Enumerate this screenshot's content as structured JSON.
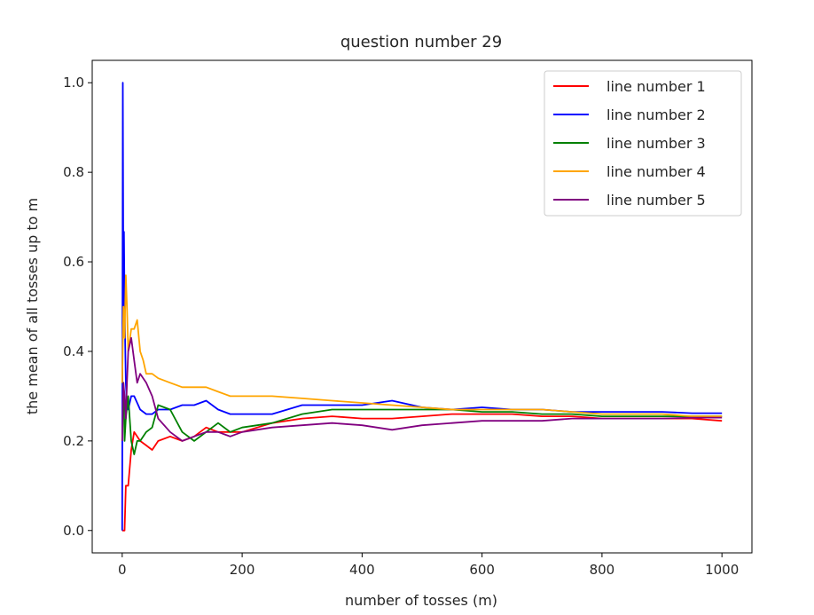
{
  "chart_data": {
    "type": "line",
    "title": "question number 29",
    "xlabel": "number of tosses (m)",
    "ylabel": "the mean of all tosses up to m",
    "xlim": [
      -50,
      1050
    ],
    "ylim": [
      -0.05,
      1.05
    ],
    "xticks": [
      0,
      200,
      400,
      600,
      800,
      1000
    ],
    "yticks": [
      0.0,
      0.2,
      0.4,
      0.6,
      0.8,
      1.0
    ],
    "ytick_labels": [
      "0.0",
      "0.2",
      "0.4",
      "0.6",
      "0.8",
      "1.0"
    ],
    "grid": false,
    "legend_position": "top-right",
    "series": [
      {
        "name": "line number 1",
        "color": "#ff0000",
        "x": [
          0,
          2,
          4,
          6,
          10,
          15,
          20,
          30,
          40,
          50,
          60,
          80,
          100,
          120,
          140,
          160,
          180,
          200,
          250,
          300,
          350,
          400,
          450,
          500,
          550,
          600,
          650,
          700,
          750,
          800,
          850,
          900,
          950,
          1000
        ],
        "y": [
          0.0,
          0.0,
          0.0,
          0.1,
          0.1,
          0.18,
          0.22,
          0.2,
          0.19,
          0.18,
          0.2,
          0.21,
          0.2,
          0.21,
          0.23,
          0.22,
          0.22,
          0.22,
          0.24,
          0.25,
          0.255,
          0.25,
          0.25,
          0.255,
          0.26,
          0.26,
          0.26,
          0.255,
          0.255,
          0.25,
          0.25,
          0.25,
          0.25,
          0.245
        ]
      },
      {
        "name": "line number 2",
        "color": "#0000ff",
        "x": [
          0,
          1,
          2,
          3,
          4,
          6,
          8,
          10,
          15,
          20,
          30,
          40,
          50,
          60,
          80,
          100,
          120,
          140,
          160,
          180,
          200,
          250,
          300,
          350,
          400,
          450,
          500,
          550,
          600,
          650,
          700,
          750,
          800,
          850,
          900,
          950,
          1000
        ],
        "y": [
          0.0,
          1.0,
          0.5,
          0.667,
          0.5,
          0.33,
          0.28,
          0.27,
          0.3,
          0.3,
          0.27,
          0.26,
          0.26,
          0.27,
          0.27,
          0.28,
          0.28,
          0.29,
          0.27,
          0.26,
          0.26,
          0.26,
          0.28,
          0.28,
          0.28,
          0.29,
          0.275,
          0.27,
          0.275,
          0.27,
          0.27,
          0.265,
          0.265,
          0.265,
          0.265,
          0.262,
          0.262
        ]
      },
      {
        "name": "line number 3",
        "color": "#008000",
        "x": [
          0,
          2,
          4,
          6,
          10,
          15,
          20,
          25,
          30,
          40,
          50,
          60,
          80,
          100,
          120,
          140,
          160,
          180,
          200,
          250,
          300,
          350,
          400,
          450,
          500,
          550,
          600,
          650,
          700,
          750,
          800,
          850,
          900,
          950,
          1000
        ],
        "y": [
          0.33,
          0.33,
          0.2,
          0.25,
          0.3,
          0.2,
          0.17,
          0.2,
          0.2,
          0.22,
          0.23,
          0.28,
          0.27,
          0.22,
          0.2,
          0.22,
          0.24,
          0.22,
          0.23,
          0.24,
          0.26,
          0.27,
          0.27,
          0.27,
          0.27,
          0.27,
          0.265,
          0.265,
          0.26,
          0.26,
          0.255,
          0.255,
          0.255,
          0.255,
          0.255
        ]
      },
      {
        "name": "line number 4",
        "color": "#ffa500",
        "x": [
          0,
          2,
          4,
          6,
          8,
          10,
          15,
          20,
          25,
          30,
          35,
          40,
          50,
          60,
          80,
          100,
          120,
          140,
          160,
          180,
          200,
          250,
          300,
          350,
          400,
          450,
          500,
          550,
          600,
          650,
          700,
          750,
          800,
          850,
          900,
          950,
          1000
        ],
        "y": [
          0.33,
          0.5,
          0.43,
          0.57,
          0.5,
          0.4,
          0.45,
          0.45,
          0.47,
          0.4,
          0.38,
          0.35,
          0.35,
          0.34,
          0.33,
          0.32,
          0.32,
          0.32,
          0.31,
          0.3,
          0.3,
          0.3,
          0.295,
          0.29,
          0.285,
          0.28,
          0.275,
          0.27,
          0.27,
          0.27,
          0.27,
          0.265,
          0.26,
          0.26,
          0.26,
          0.255,
          0.255
        ]
      },
      {
        "name": "line number 5",
        "color": "#800080",
        "x": [
          0,
          2,
          4,
          6,
          8,
          10,
          15,
          20,
          25,
          30,
          40,
          50,
          60,
          80,
          100,
          120,
          140,
          160,
          180,
          200,
          250,
          300,
          350,
          400,
          450,
          500,
          550,
          600,
          650,
          700,
          750,
          800,
          850,
          900,
          950,
          1000
        ],
        "y": [
          0.2,
          0.33,
          0.3,
          0.25,
          0.33,
          0.4,
          0.43,
          0.38,
          0.33,
          0.35,
          0.33,
          0.3,
          0.25,
          0.22,
          0.2,
          0.21,
          0.22,
          0.22,
          0.21,
          0.22,
          0.23,
          0.235,
          0.24,
          0.235,
          0.225,
          0.235,
          0.24,
          0.245,
          0.245,
          0.245,
          0.25,
          0.25,
          0.25,
          0.25,
          0.252,
          0.252
        ]
      }
    ]
  }
}
